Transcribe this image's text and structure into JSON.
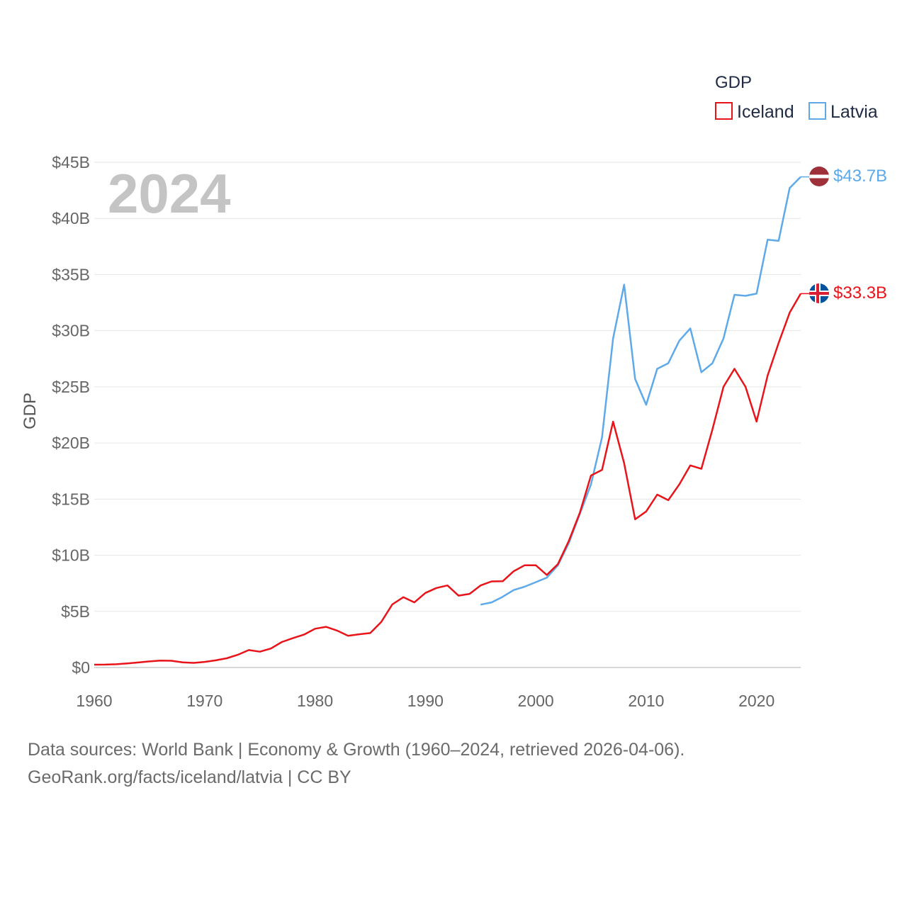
{
  "chart_data": {
    "type": "line",
    "ylabel": "GDP",
    "year_label": "2024",
    "legend": {
      "title": "GDP"
    },
    "ylim": [
      0,
      45000000000
    ],
    "xlim": [
      1960,
      2024
    ],
    "y_ticks": [
      "$0",
      "$5B",
      "$10B",
      "$15B",
      "$20B",
      "$25B",
      "$30B",
      "$35B",
      "$40B",
      "$45B"
    ],
    "x_ticks": [
      "1960",
      "1970",
      "1980",
      "1990",
      "2000",
      "2010",
      "2020"
    ],
    "series": [
      {
        "name": "Iceland",
        "color": "#e8141a",
        "end_label": "$33.3B",
        "flag": "iceland-flag",
        "start_year": 1960,
        "values_billions": [
          0.25,
          0.26,
          0.29,
          0.36,
          0.45,
          0.54,
          0.62,
          0.6,
          0.46,
          0.41,
          0.5,
          0.64,
          0.82,
          1.13,
          1.55,
          1.41,
          1.69,
          2.27,
          2.61,
          2.93,
          3.45,
          3.62,
          3.29,
          2.83,
          2.96,
          3.07,
          4.05,
          5.62,
          6.26,
          5.8,
          6.64,
          7.08,
          7.31,
          6.4,
          6.56,
          7.31,
          7.67,
          7.68,
          8.58,
          9.11,
          9.11,
          8.24,
          9.2,
          11.3,
          13.8,
          17.1,
          17.6,
          21.9,
          18.2,
          13.2,
          13.9,
          15.4,
          14.9,
          16.3,
          18.0,
          17.7,
          21.2,
          25.0,
          26.6,
          25.0,
          21.9,
          26.0,
          28.9,
          31.6,
          33.3
        ]
      },
      {
        "name": "Latvia",
        "color": "#5da9e9",
        "end_label": "$43.7B",
        "flag": "latvia-flag",
        "start_year": 1995,
        "values_billions": [
          5.6,
          5.8,
          6.3,
          6.9,
          7.2,
          7.6,
          8.0,
          9.1,
          11.1,
          13.7,
          16.3,
          20.5,
          29.3,
          34.1,
          25.7,
          23.4,
          26.6,
          27.1,
          29.1,
          30.2,
          26.3,
          27.1,
          29.3,
          33.2,
          33.1,
          33.3,
          38.1,
          38.0,
          42.7,
          43.7
        ]
      }
    ]
  },
  "footer": {
    "line1": "Data sources: World Bank | Economy & Growth (1960–2024, retrieved 2026-04-06).",
    "line2": "GeoRank.org/facts/iceland/latvia | CC BY"
  }
}
